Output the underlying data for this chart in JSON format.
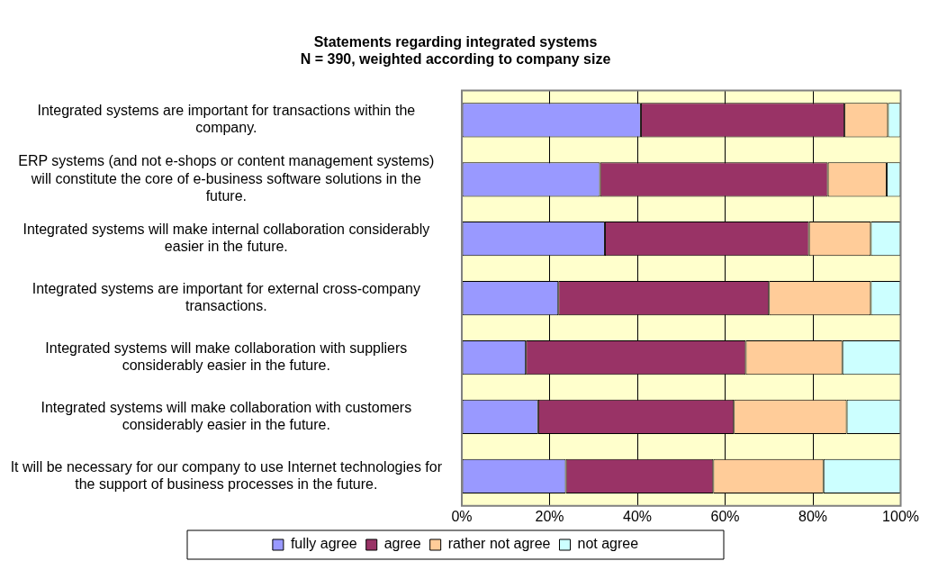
{
  "chart_data": {
    "type": "bar",
    "orientation": "horizontal",
    "stacked": true,
    "title": "Statements regarding integrated systems",
    "subtitle": "N = 390, weighted according to company size",
    "categories": [
      "Integrated systems are important for transactions within the company.",
      "ERP systems (and not e-shops or content management systems) will constitute the core of e-business software solutions in the future.",
      "Integrated systems will make internal collaboration considerably easier in the future.",
      "Integrated systems are important for external cross-company transactions.",
      "Integrated systems will make collaboration with suppliers considerably easier in the future.",
      "Integrated systems will make collaboration with customers considerably easier in the future.",
      "It will be necessary for our company to use Internet technologies for the support of business processes in the future."
    ],
    "series": [
      {
        "name": "fully agree",
        "color": "#9999ff",
        "values": [
          40.8,
          31.5,
          32.6,
          22.0,
          14.6,
          17.4,
          23.7
        ]
      },
      {
        "name": "agree",
        "color": "#993366",
        "values": [
          46.4,
          51.9,
          46.5,
          48.0,
          50.1,
          44.6,
          33.6
        ]
      },
      {
        "name": "rather not agree",
        "color": "#ffcc99",
        "values": [
          9.9,
          13.4,
          14.1,
          23.2,
          22.0,
          25.7,
          25.1
        ]
      },
      {
        "name": "not agree",
        "color": "#ccffff",
        "values": [
          2.9,
          3.2,
          6.8,
          6.8,
          13.3,
          12.3,
          17.6
        ]
      }
    ],
    "xlim": [
      0,
      100
    ],
    "xticks": [
      {
        "value": 0,
        "label": "0%"
      },
      {
        "value": 20,
        "label": "20%"
      },
      {
        "value": 40,
        "label": "40%"
      },
      {
        "value": 60,
        "label": "60%"
      },
      {
        "value": 80,
        "label": "80%"
      },
      {
        "value": 100,
        "label": "100%"
      }
    ],
    "grid": "x",
    "legend": "bottom"
  }
}
